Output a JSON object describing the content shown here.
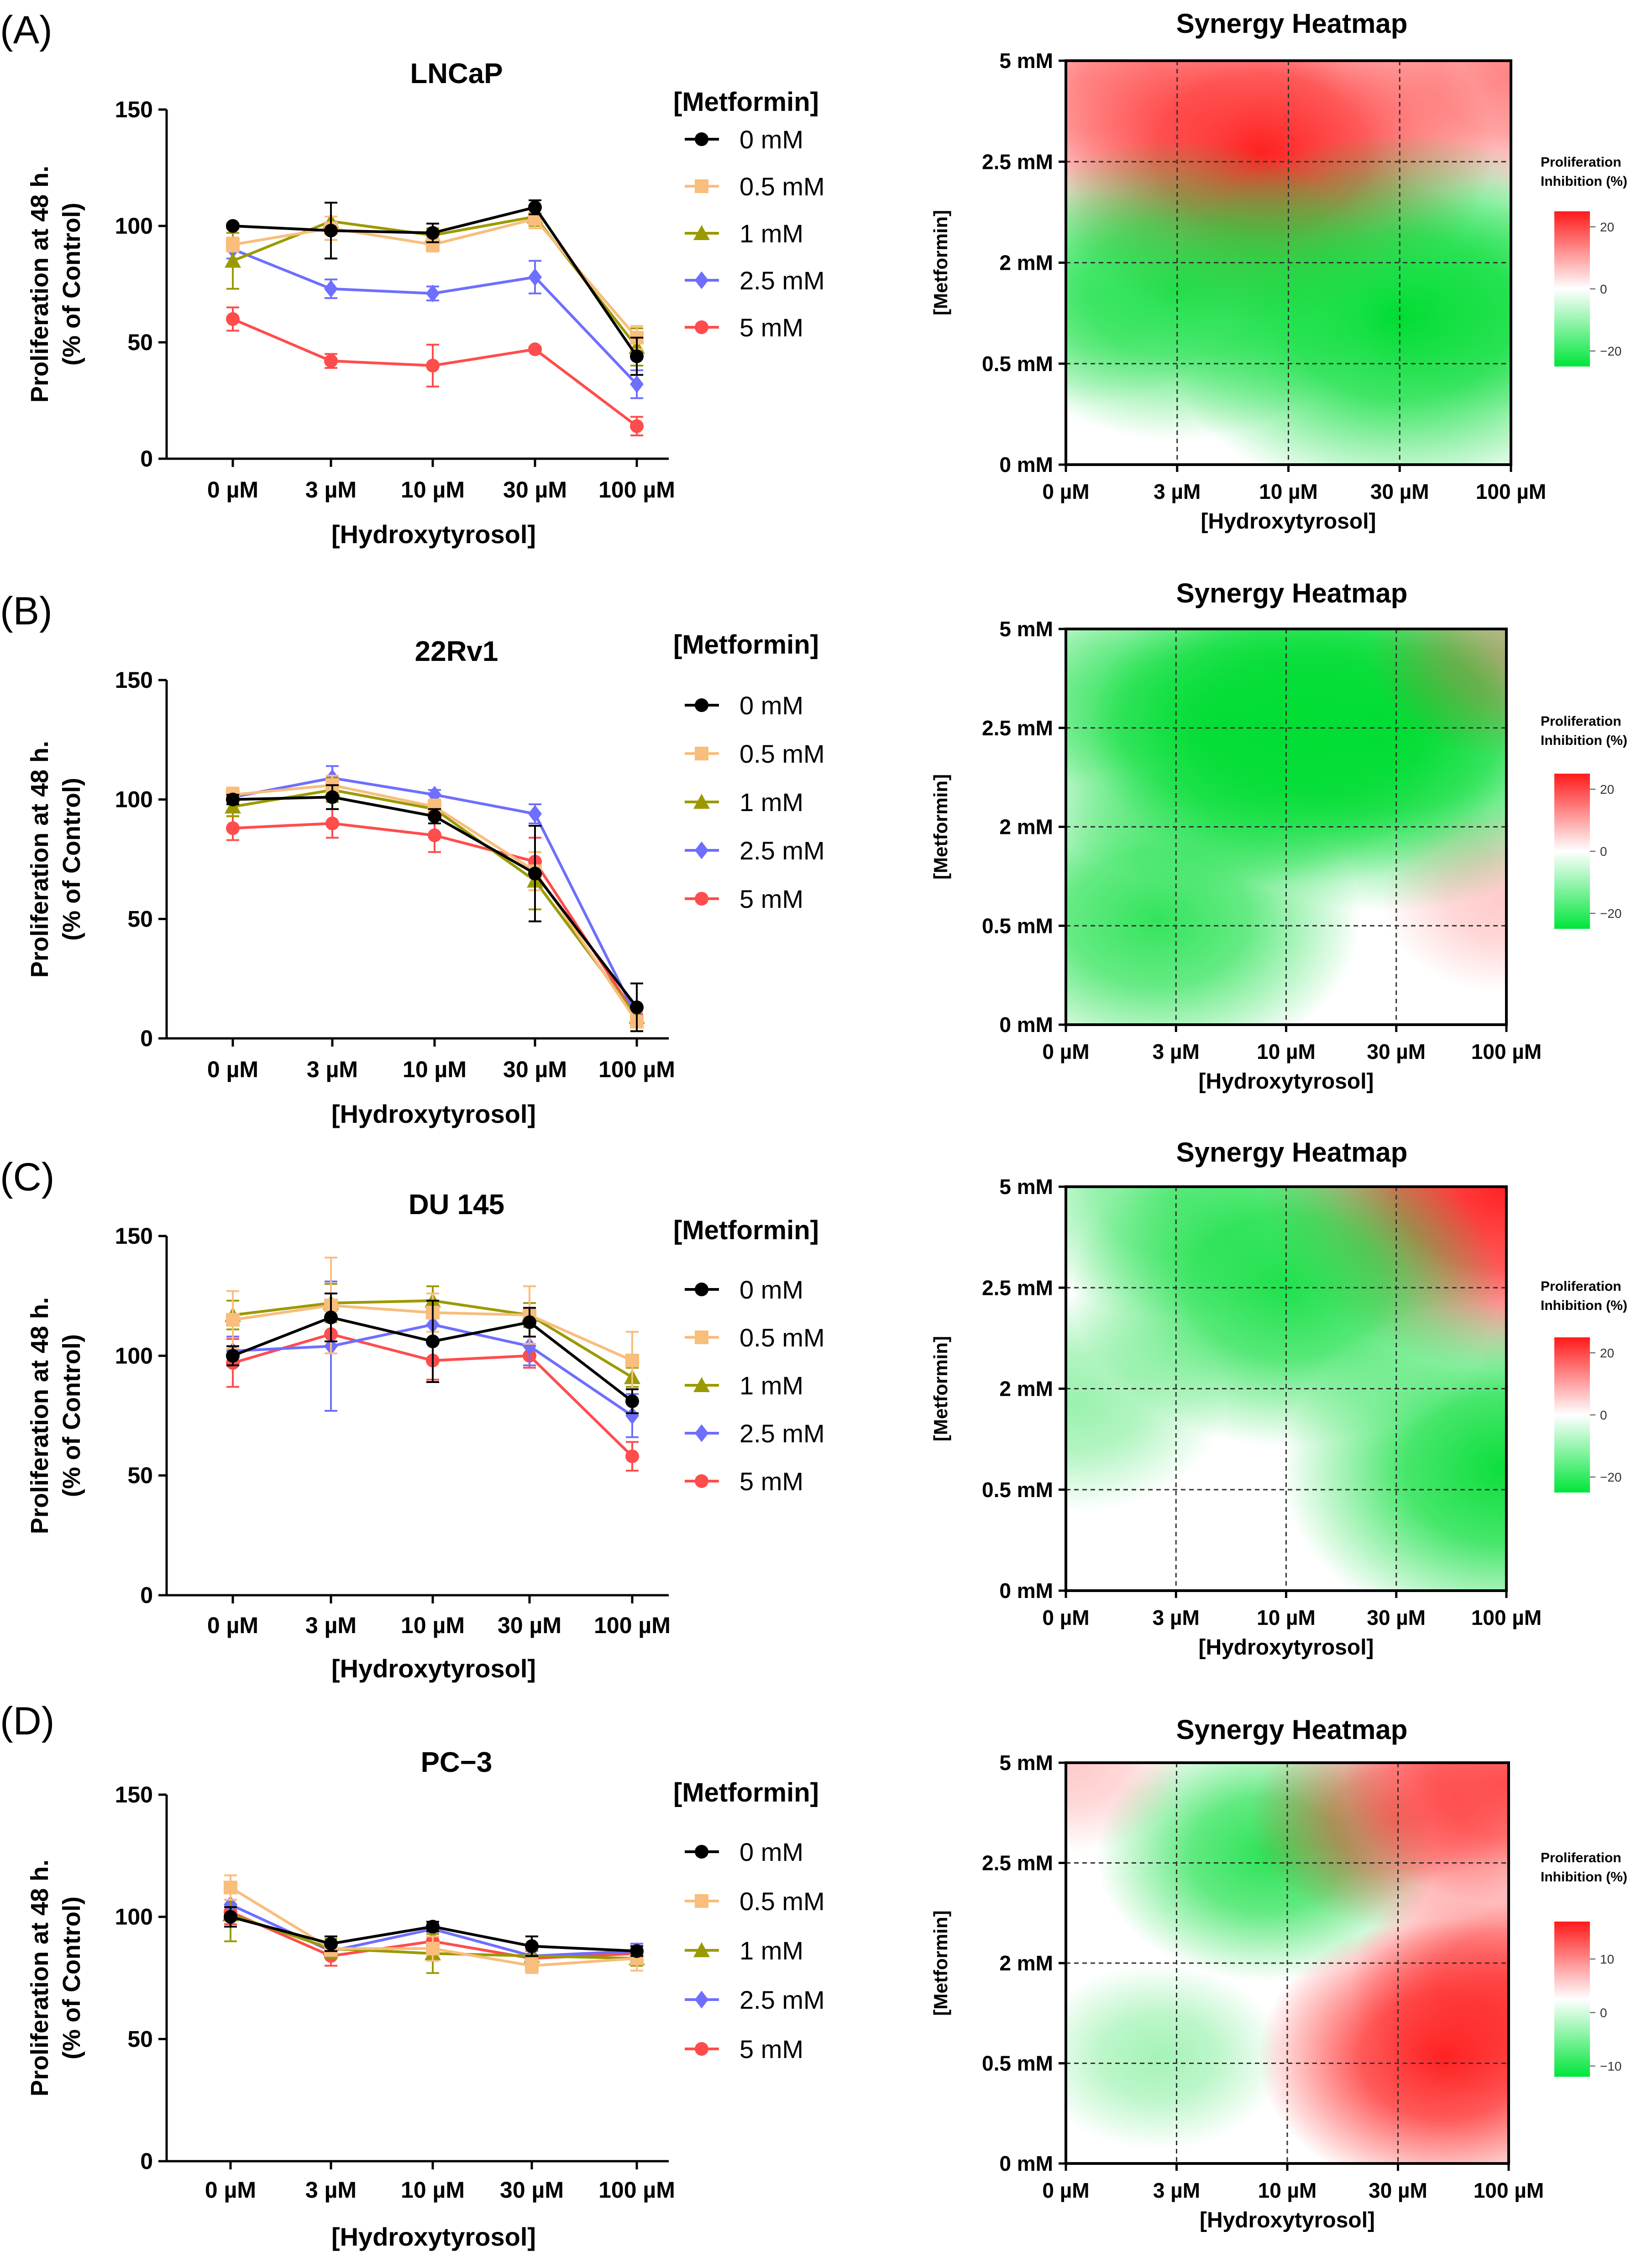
{
  "chart_data": [
    {
      "panel": "(A)",
      "type": "line",
      "title": "LNCaP",
      "xlabel": "[Hydroxytyrosol]",
      "ylabel": [
        "Proliferation at 48 h.",
        "(% of Control)"
      ],
      "categories": [
        "0 µM",
        "3 µM",
        "10 µM",
        "30 µM",
        "100 µM"
      ],
      "ylim": [
        0,
        150
      ],
      "yticks": [
        0,
        50,
        100,
        150
      ],
      "legend_title": "[Metformin]",
      "series": [
        {
          "name": "0 mM",
          "marker": "circle",
          "color": "#000000",
          "values": [
            100,
            98,
            97,
            108,
            44
          ],
          "errors": [
            1,
            12,
            4,
            3,
            8
          ]
        },
        {
          "name": "0.5 mM",
          "marker": "square",
          "color": "#f9bd7c",
          "values": [
            92,
            99,
            92,
            103,
            52
          ],
          "errors": [
            3,
            5,
            3,
            4,
            5
          ]
        },
        {
          "name": "1 mM",
          "marker": "triangle",
          "color": "#9a9a00",
          "values": [
            85,
            102,
            96,
            104,
            48
          ],
          "errors": [
            12,
            8,
            3,
            4,
            8
          ]
        },
        {
          "name": "2.5 mM",
          "marker": "diamond",
          "color": "#6e6eff",
          "values": [
            90,
            73,
            71,
            78,
            32
          ],
          "errors": [
            4,
            4,
            3,
            7,
            6
          ]
        },
        {
          "name": "5 mM",
          "marker": "circle",
          "color": "#ff4c4c",
          "values": [
            60,
            42,
            40,
            47,
            14
          ],
          "errors": [
            5,
            3,
            9,
            1,
            4
          ]
        }
      ]
    },
    {
      "panel": "(B)",
      "type": "line",
      "title": "22Rv1",
      "xlabel": "[Hydroxytyrosol]",
      "ylabel": [
        "Proliferation at 48 h.",
        "(% of Control)"
      ],
      "categories": [
        "0 µM",
        "3 µM",
        "10 µM",
        "30 µM",
        "100 µM"
      ],
      "ylim": [
        0,
        150
      ],
      "yticks": [
        0,
        50,
        100,
        150
      ],
      "legend_title": "[Metformin]",
      "series": [
        {
          "name": "0 mM",
          "marker": "circle",
          "color": "#000000",
          "values": [
            100,
            101,
            93,
            69,
            13
          ],
          "errors": [
            2,
            5,
            3,
            20,
            10
          ]
        },
        {
          "name": "0.5 mM",
          "marker": "square",
          "color": "#f9bd7c",
          "values": [
            102,
            106,
            97,
            70,
            7
          ],
          "errors": [
            3,
            4,
            3,
            8,
            4
          ]
        },
        {
          "name": "1 mM",
          "marker": "triangle",
          "color": "#9a9a00",
          "values": [
            97,
            104,
            96,
            66,
            9
          ],
          "errors": [
            4,
            5,
            3,
            12,
            4
          ]
        },
        {
          "name": "2.5 mM",
          "marker": "diamond",
          "color": "#6e6eff",
          "values": [
            101,
            109,
            102,
            94,
            9
          ],
          "errors": [
            2,
            5,
            2,
            4,
            3
          ]
        },
        {
          "name": "5 mM",
          "marker": "circle",
          "color": "#ff4c4c",
          "values": [
            88,
            90,
            85,
            74,
            9
          ],
          "errors": [
            5,
            6,
            7,
            10,
            3
          ]
        }
      ]
    },
    {
      "panel": "(C)",
      "type": "line",
      "title": "DU 145",
      "xlabel": "[Hydroxytyrosol]",
      "ylabel": [
        "Proliferation at 48 h.",
        "(% of Control)"
      ],
      "categories": [
        "0 µM",
        "3 µM",
        "10 µM",
        "30 µM",
        "100 µM"
      ],
      "ylim": [
        0,
        150
      ],
      "yticks": [
        0,
        50,
        100,
        150
      ],
      "legend_title": "[Metformin]",
      "series": [
        {
          "name": "0 mM",
          "marker": "circle",
          "color": "#000000",
          "values": [
            100,
            116,
            106,
            114,
            81
          ],
          "errors": [
            4,
            10,
            17,
            6,
            5
          ]
        },
        {
          "name": "0.5 mM",
          "marker": "square",
          "color": "#f9bd7c",
          "values": [
            115,
            121,
            118,
            117,
            98
          ],
          "errors": [
            12,
            20,
            8,
            12,
            12
          ]
        },
        {
          "name": "1 mM",
          "marker": "triangle",
          "color": "#9a9a00",
          "values": [
            117,
            122,
            123,
            117,
            91
          ],
          "errors": [
            6,
            8,
            6,
            5,
            4
          ]
        },
        {
          "name": "2.5 mM",
          "marker": "diamond",
          "color": "#6e6eff",
          "values": [
            102,
            104,
            113,
            104,
            75
          ],
          "errors": [
            6,
            27,
            6,
            8,
            9
          ]
        },
        {
          "name": "5 mM",
          "marker": "circle",
          "color": "#ff4c4c",
          "values": [
            97,
            109,
            98,
            100,
            58
          ],
          "errors": [
            10,
            5,
            8,
            5,
            6
          ]
        }
      ]
    },
    {
      "panel": "(D)",
      "type": "line",
      "title": "PC−3",
      "xlabel": "[Hydroxytyrosol]",
      "ylabel": [
        "Proliferation at 48 h.",
        "(% of Control)"
      ],
      "categories": [
        "0 µM",
        "3 µM",
        "10 µM",
        "30 µM",
        "100 µM"
      ],
      "ylim": [
        0,
        150
      ],
      "yticks": [
        0,
        50,
        100,
        150
      ],
      "legend_title": "[Metformin]",
      "series": [
        {
          "name": "0 mM",
          "marker": "circle",
          "color": "#000000",
          "values": [
            100,
            89,
            96,
            88,
            86
          ],
          "errors": [
            4,
            3,
            2,
            4,
            2
          ]
        },
        {
          "name": "0.5 mM",
          "marker": "square",
          "color": "#f9bd7c",
          "values": [
            112,
            87,
            87,
            80,
            83
          ],
          "errors": [
            5,
            3,
            5,
            3,
            5
          ]
        },
        {
          "name": "1 mM",
          "marker": "triangle",
          "color": "#9a9a00",
          "values": [
            101,
            87,
            85,
            84,
            83
          ],
          "errors": [
            11,
            4,
            8,
            3,
            3
          ]
        },
        {
          "name": "2.5 mM",
          "marker": "diamond",
          "color": "#6e6eff",
          "values": [
            105,
            86,
            95,
            84,
            86
          ],
          "errors": [
            5,
            3,
            3,
            3,
            3
          ]
        },
        {
          "name": "5 mM",
          "marker": "circle",
          "color": "#ff4c4c",
          "values": [
            102,
            84,
            90,
            83,
            85
          ],
          "errors": [
            5,
            4,
            3,
            3,
            3
          ]
        }
      ]
    },
    {
      "panel": "(A)",
      "type": "heatmap",
      "title": "Synergy Heatmap",
      "xlabel": "[Hydroxytyrosol]",
      "ylabel": "[Metformin]",
      "x_ticks": [
        "0 µM",
        "3 µM",
        "10 µM",
        "30 µM",
        "100 µM"
      ],
      "y_ticks": [
        "0 mM",
        "0.5 mM",
        "2 mM",
        "2.5 mM",
        "5 mM"
      ],
      "colorbar_title": [
        "Proliferation",
        "Inhibition (%)"
      ],
      "colorbar_ticks": [
        20,
        0,
        -20
      ],
      "color_range": [
        -25,
        25
      ],
      "hotspots": [
        {
          "hx": 7.5,
          "metformin": 2.75,
          "value": 25
        },
        {
          "hx": 0.5,
          "metformin": 4.6,
          "value": 12
        },
        {
          "hx": 100,
          "metformin": 4.6,
          "value": 14
        },
        {
          "hx": 30,
          "metformin": 1.2,
          "value": -28
        },
        {
          "hx": 3,
          "metformin": 1.6,
          "value": -20
        },
        {
          "hx": 0.5,
          "metformin": 1.5,
          "value": -10
        },
        {
          "hx": 100,
          "metformin": 1.5,
          "value": -12
        }
      ]
    },
    {
      "panel": "(B)",
      "type": "heatmap",
      "title": "Synergy Heatmap",
      "xlabel": "[Hydroxytyrosol]",
      "ylabel": "[Metformin]",
      "x_ticks": [
        "0 µM",
        "3 µM",
        "10 µM",
        "30 µM",
        "100 µM"
      ],
      "y_ticks": [
        "0 mM",
        "0.5 mM",
        "2 mM",
        "2.5 mM",
        "5 mM"
      ],
      "colorbar_title": [
        "Proliferation",
        "Inhibition (%)"
      ],
      "colorbar_ticks": [
        20,
        0,
        -20
      ],
      "color_range": [
        -25,
        25
      ],
      "hotspots": [
        {
          "hx": 28,
          "metformin": 2.5,
          "value": -28
        },
        {
          "hx": 5,
          "metformin": 2.6,
          "value": -24
        },
        {
          "hx": 12,
          "metformin": 2.5,
          "value": -22
        },
        {
          "hx": 2.5,
          "metformin": 0.6,
          "value": -20
        },
        {
          "hx": 0.3,
          "metformin": 3.5,
          "value": -8
        },
        {
          "hx": 100,
          "metformin": 4.3,
          "value": 8
        },
        {
          "hx": 100,
          "metformin": 0.9,
          "value": 6
        }
      ]
    },
    {
      "panel": "(C)",
      "type": "heatmap",
      "title": "Synergy Heatmap",
      "xlabel": "[Hydroxytyrosol]",
      "ylabel": "[Metformin]",
      "x_ticks": [
        "0 µM",
        "3 µM",
        "10 µM",
        "30 µM",
        "100 µM"
      ],
      "y_ticks": [
        "0 mM",
        "0.5 mM",
        "2 mM",
        "2.5 mM",
        "5 mM"
      ],
      "colorbar_title": [
        "Proliferation",
        "Inhibition (%)"
      ],
      "colorbar_ticks": [
        20,
        0,
        -20
      ],
      "color_range": [
        -25,
        25
      ],
      "hotspots": [
        {
          "hx": 100,
          "metformin": 5,
          "value": 28
        },
        {
          "hx": 10,
          "metformin": 2.5,
          "value": -22
        },
        {
          "hx": 100,
          "metformin": 0.8,
          "value": -24
        },
        {
          "hx": 3,
          "metformin": 4.8,
          "value": -14
        },
        {
          "hx": 0.3,
          "metformin": 1.8,
          "value": -10
        }
      ]
    },
    {
      "panel": "(D)",
      "type": "heatmap",
      "title": "Synergy Heatmap",
      "xlabel": "[Hydroxytyrosol]",
      "ylabel": "[Metformin]",
      "x_ticks": [
        "0 µM",
        "3 µM",
        "10 µM",
        "30 µM",
        "100 µM"
      ],
      "y_ticks": [
        "0 mM",
        "0.5 mM",
        "2 mM",
        "2.5 mM",
        "5 mM"
      ],
      "colorbar_title": [
        "Proliferation",
        "Inhibition (%)"
      ],
      "colorbar_ticks": [
        10,
        0,
        -10
      ],
      "color_range": [
        -12,
        17
      ],
      "hotspots": [
        {
          "hx": 8,
          "metformin": 2.7,
          "value": -14
        },
        {
          "hx": 2.5,
          "metformin": 0.6,
          "value": -6
        },
        {
          "hx": 0.2,
          "metformin": 4.9,
          "value": 4
        },
        {
          "hx": 50,
          "metformin": 0.6,
          "value": 17
        },
        {
          "hx": 100,
          "metformin": 4.5,
          "value": 13
        },
        {
          "hx": 30,
          "metformin": 3.6,
          "value": 10
        },
        {
          "hx": 100,
          "metformin": 1.7,
          "value": 12
        }
      ]
    }
  ]
}
